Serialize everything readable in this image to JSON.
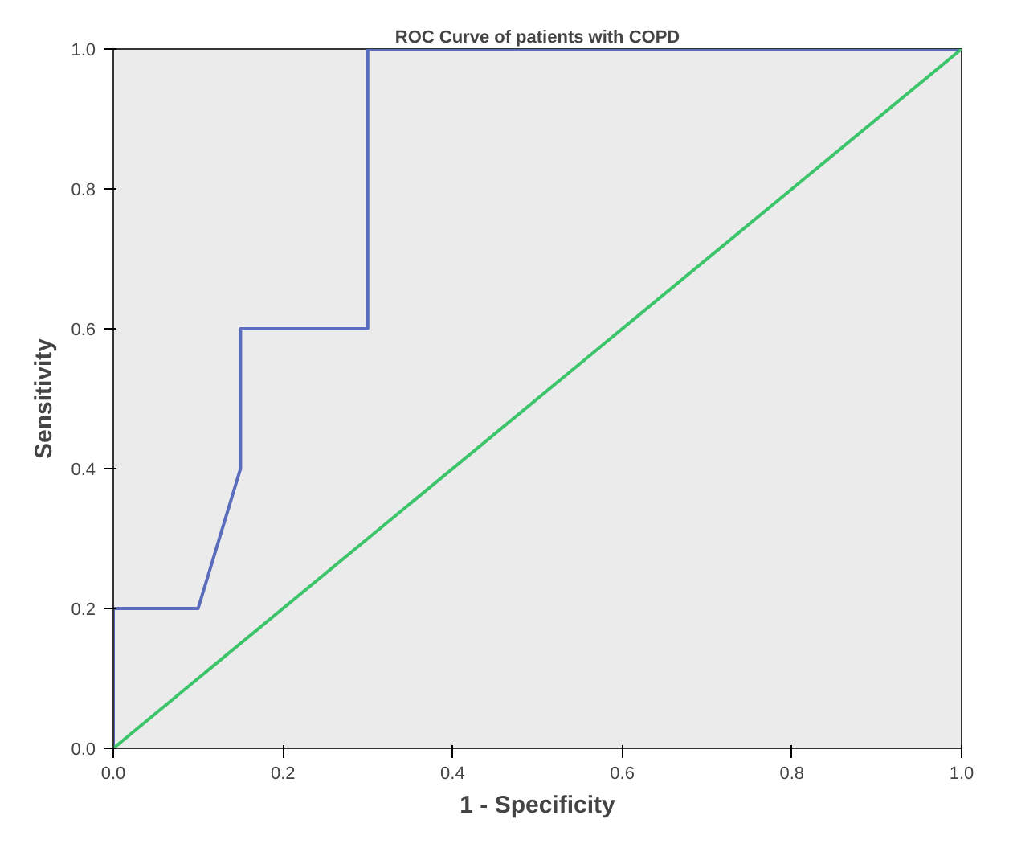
{
  "chart_data": {
    "type": "line",
    "title": "ROC Curve of patients with COPD",
    "xlabel": "1 - Specificity",
    "ylabel": "Sensitivity",
    "series": [
      {
        "x": [
          0,
          0,
          0.1,
          0.15,
          0.15,
          0.3,
          0.3,
          1
        ],
        "values": [
          0,
          0.2,
          0.2,
          0.4,
          0.6,
          0.6,
          1,
          1
        ],
        "color": "#5a6dbd"
      },
      {
        "x": [
          0,
          1
        ],
        "values": [
          0,
          1
        ],
        "color": "#3cc46a"
      }
    ],
    "xlim": [
      0,
      1
    ],
    "ylim": [
      0,
      1
    ],
    "xticks": [
      {
        "value": 0,
        "label": "0.0"
      },
      {
        "value": 0.2,
        "label": "0.2"
      },
      {
        "value": 0.4,
        "label": "0.4"
      },
      {
        "value": 0.6,
        "label": "0.6"
      },
      {
        "value": 0.8,
        "label": "0.8"
      },
      {
        "value": 1,
        "label": "1.0"
      }
    ],
    "yticks": [
      {
        "value": 0,
        "label": "0.0"
      },
      {
        "value": 0.2,
        "label": "0.2"
      },
      {
        "value": 0.4,
        "label": "0.4"
      },
      {
        "value": 0.6,
        "label": "0.6"
      },
      {
        "value": 0.8,
        "label": "0.8"
      },
      {
        "value": 1,
        "label": "1.0"
      }
    ],
    "line_style": "solid"
  }
}
